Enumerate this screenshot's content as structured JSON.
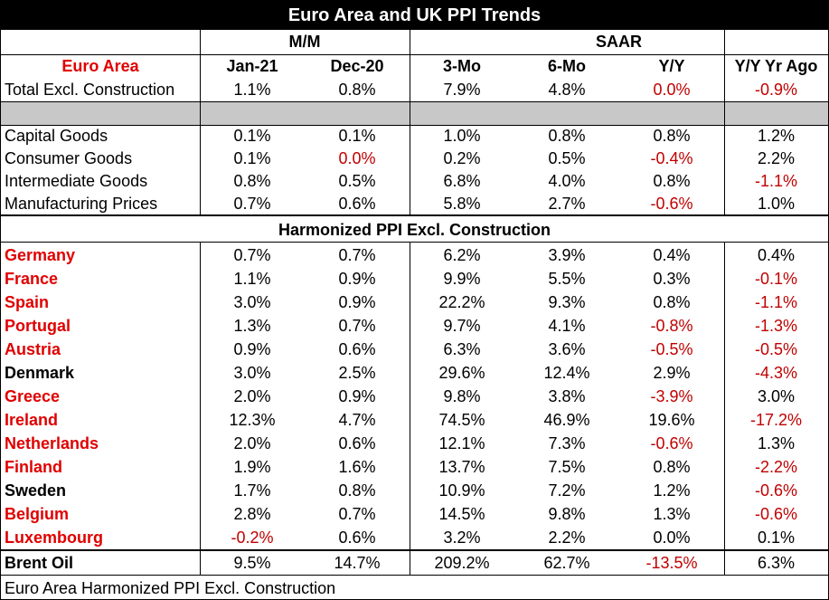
{
  "title": "Euro Area and UK PPI Trends",
  "groups": {
    "mm": "M/M",
    "saar": "SAAR"
  },
  "columns": [
    "Jan-21",
    "Dec-20",
    "3-Mo",
    "6-Mo",
    "Y/Y",
    "Y/Y Yr Ago"
  ],
  "section1_label": "Euro Area",
  "section2_label": "Harmonized PPI Excl. Construction",
  "footer": "Euro Area Harmonized PPI Excl. Construction",
  "chart_data": {
    "type": "table",
    "title": "Euro Area and UK PPI Trends",
    "euro_total": {
      "label": "Total Excl. Construction",
      "values": [
        "1.1%",
        "0.8%",
        "7.9%",
        "4.8%",
        "0.0%",
        "-0.9%"
      ],
      "red": [
        false,
        false,
        false,
        false,
        true,
        true
      ]
    },
    "euro_components": [
      {
        "label": "Capital Goods",
        "values": [
          "0.1%",
          "0.1%",
          "1.0%",
          "0.8%",
          "0.8%",
          "1.2%"
        ],
        "red": [
          false,
          false,
          false,
          false,
          false,
          false
        ]
      },
      {
        "label": "Consumer Goods",
        "values": [
          "0.1%",
          "0.0%",
          "0.2%",
          "0.5%",
          "-0.4%",
          "2.2%"
        ],
        "red": [
          false,
          true,
          false,
          false,
          true,
          false
        ]
      },
      {
        "label": "Intermediate Goods",
        "values": [
          "0.8%",
          "0.5%",
          "6.8%",
          "4.0%",
          "0.8%",
          "-1.1%"
        ],
        "red": [
          false,
          false,
          false,
          false,
          false,
          true
        ]
      },
      {
        "label": "Manufacturing Prices",
        "values": [
          "0.7%",
          "0.6%",
          "5.8%",
          "2.7%",
          "-0.6%",
          "1.0%"
        ],
        "red": [
          false,
          false,
          false,
          false,
          true,
          false
        ]
      }
    ],
    "countries": [
      {
        "label": "Germany",
        "euro": true,
        "values": [
          "0.7%",
          "0.7%",
          "6.2%",
          "3.9%",
          "0.4%",
          "0.4%"
        ],
        "red": [
          false,
          false,
          false,
          false,
          false,
          false
        ]
      },
      {
        "label": "France",
        "euro": true,
        "values": [
          "1.1%",
          "0.9%",
          "9.9%",
          "5.5%",
          "0.3%",
          "-0.1%"
        ],
        "red": [
          false,
          false,
          false,
          false,
          false,
          true
        ]
      },
      {
        "label": "Spain",
        "euro": true,
        "values": [
          "3.0%",
          "0.9%",
          "22.2%",
          "9.3%",
          "0.8%",
          "-1.1%"
        ],
        "red": [
          false,
          false,
          false,
          false,
          false,
          true
        ]
      },
      {
        "label": "Portugal",
        "euro": true,
        "values": [
          "1.3%",
          "0.7%",
          "9.7%",
          "4.1%",
          "-0.8%",
          "-1.3%"
        ],
        "red": [
          false,
          false,
          false,
          false,
          true,
          true
        ]
      },
      {
        "label": "Austria",
        "euro": true,
        "values": [
          "0.9%",
          "0.6%",
          "6.3%",
          "3.6%",
          "-0.5%",
          "-0.5%"
        ],
        "red": [
          false,
          false,
          false,
          false,
          true,
          true
        ]
      },
      {
        "label": "Denmark",
        "euro": false,
        "values": [
          "3.0%",
          "2.5%",
          "29.6%",
          "12.4%",
          "2.9%",
          "-4.3%"
        ],
        "red": [
          false,
          false,
          false,
          false,
          false,
          true
        ]
      },
      {
        "label": "Greece",
        "euro": true,
        "values": [
          "2.0%",
          "0.9%",
          "9.8%",
          "3.8%",
          "-3.9%",
          "3.0%"
        ],
        "red": [
          false,
          false,
          false,
          false,
          true,
          false
        ]
      },
      {
        "label": "Ireland",
        "euro": true,
        "values": [
          "12.3%",
          "4.7%",
          "74.5%",
          "46.9%",
          "19.6%",
          "-17.2%"
        ],
        "red": [
          false,
          false,
          false,
          false,
          false,
          true
        ]
      },
      {
        "label": "Netherlands",
        "euro": true,
        "values": [
          "2.0%",
          "0.6%",
          "12.1%",
          "7.3%",
          "-0.6%",
          "1.3%"
        ],
        "red": [
          false,
          false,
          false,
          false,
          true,
          false
        ]
      },
      {
        "label": "Finland",
        "euro": true,
        "values": [
          "1.9%",
          "1.6%",
          "13.7%",
          "7.5%",
          "0.8%",
          "-2.2%"
        ],
        "red": [
          false,
          false,
          false,
          false,
          false,
          true
        ]
      },
      {
        "label": "Sweden",
        "euro": false,
        "values": [
          "1.7%",
          "0.8%",
          "10.9%",
          "7.2%",
          "1.2%",
          "-0.6%"
        ],
        "red": [
          false,
          false,
          false,
          false,
          false,
          true
        ]
      },
      {
        "label": "Belgium",
        "euro": true,
        "values": [
          "2.8%",
          "0.7%",
          "14.5%",
          "9.8%",
          "1.3%",
          "-0.6%"
        ],
        "red": [
          false,
          false,
          false,
          false,
          false,
          true
        ]
      },
      {
        "label": "Luxembourg",
        "euro": true,
        "values": [
          "-0.2%",
          "0.6%",
          "3.2%",
          "2.2%",
          "0.0%",
          "0.1%"
        ],
        "red": [
          true,
          false,
          false,
          false,
          false,
          false
        ]
      }
    ],
    "brent": {
      "label": "Brent Oil",
      "values": [
        "9.5%",
        "14.7%",
        "209.2%",
        "62.7%",
        "-13.5%",
        "6.3%"
      ],
      "red": [
        false,
        false,
        false,
        false,
        true,
        false
      ]
    }
  }
}
